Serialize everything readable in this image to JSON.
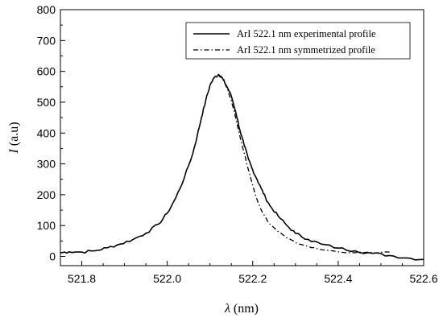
{
  "chart_data": {
    "type": "line",
    "title": "",
    "xlabel": "λ (nm)",
    "ylabel": "I (a.u)",
    "xlim": [
      521.75,
      522.6
    ],
    "ylim": [
      -30,
      800
    ],
    "x_ticks": [
      521.8,
      522.0,
      522.2,
      522.4,
      522.6
    ],
    "x_tick_labels": [
      "521.8",
      "522.0",
      "522.2",
      "522.4",
      "522.6"
    ],
    "y_ticks": [
      0,
      100,
      200,
      300,
      400,
      500,
      600,
      700,
      800
    ],
    "y_tick_labels": [
      "0",
      "100",
      "200",
      "300",
      "400",
      "500",
      "600",
      "700",
      "800"
    ],
    "grid": false,
    "legend_position": "top-right",
    "series": [
      {
        "name": "ArI 522.1 nm experimental profile",
        "style": "solid",
        "color": "#000000",
        "x": [
          521.75,
          521.77,
          521.8,
          521.83,
          521.86,
          521.89,
          521.92,
          521.95,
          521.98,
          522.0,
          522.02,
          522.04,
          522.06,
          522.07,
          522.08,
          522.09,
          522.1,
          522.11,
          522.12,
          522.125,
          522.13,
          522.14,
          522.15,
          522.16,
          522.17,
          522.18,
          522.19,
          522.2,
          522.21,
          522.22,
          522.23,
          522.24,
          522.26,
          522.28,
          522.3,
          522.33,
          522.36,
          522.4,
          522.44,
          522.48,
          522.52,
          522.56,
          522.6
        ],
        "y": [
          12,
          15,
          14,
          18,
          28,
          40,
          55,
          75,
          105,
          140,
          190,
          255,
          335,
          390,
          450,
          505,
          555,
          580,
          590,
          585,
          575,
          550,
          520,
          470,
          410,
          360,
          315,
          280,
          250,
          220,
          190,
          165,
          130,
          100,
          75,
          55,
          40,
          27,
          18,
          10,
          3,
          -5,
          -10
        ]
      },
      {
        "name": "ArI 522.1 nm symmetrized profile",
        "style": "dash-dot",
        "color": "#000000",
        "x": [
          522.12,
          522.13,
          522.14,
          522.15,
          522.16,
          522.17,
          522.18,
          522.19,
          522.2,
          522.21,
          522.22,
          522.23,
          522.24,
          522.26,
          522.28,
          522.3,
          522.33,
          522.36,
          522.4,
          522.44,
          522.48,
          522.52
        ],
        "y": [
          590,
          575,
          545,
          505,
          450,
          390,
          335,
          280,
          230,
          185,
          150,
          125,
          105,
          80,
          60,
          45,
          32,
          22,
          15,
          12,
          12,
          14
        ]
      }
    ]
  }
}
